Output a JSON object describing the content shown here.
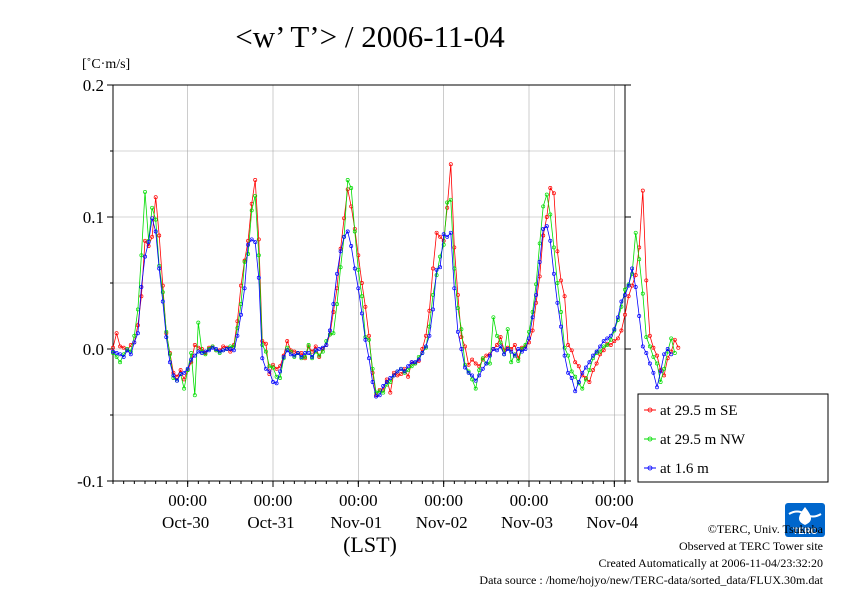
{
  "chart_data": {
    "type": "line",
    "title": "<w’ T’> / 2006-11-04",
    "ylabel": "[˚C·m/s]",
    "xlabel": "(LST)",
    "ylim": [
      -0.1,
      0.2
    ],
    "yticks": [
      "-0.1",
      "0.0",
      "0.1",
      "0.2"
    ],
    "yticks_values": [
      -0.1,
      0.0,
      0.1,
      0.2
    ],
    "xlim": [
      0,
      144
    ],
    "xticks": [
      {
        "x": 21,
        "time": "00:00",
        "date": "Oct-30"
      },
      {
        "x": 45,
        "time": "00:00",
        "date": "Oct-31"
      },
      {
        "x": 69,
        "time": "00:00",
        "date": "Nov-01"
      },
      {
        "x": 93,
        "time": "00:00",
        "date": "Nov-02"
      },
      {
        "x": 117,
        "time": "00:00",
        "date": "Nov-03"
      },
      {
        "x": 141,
        "time": "00:00",
        "date": "Nov-04"
      }
    ],
    "grid": true,
    "legend_position": "bottom-right, outside plot",
    "series": [
      {
        "name": "at 29.5 m SE",
        "color": "#ff0000",
        "values": [
          0.001,
          0.012,
          0.002,
          0.001,
          -0.001,
          0.003,
          0.005,
          0.018,
          0.04,
          0.082,
          0.078,
          0.085,
          0.115,
          0.086,
          0.048,
          0.012,
          -0.003,
          -0.018,
          -0.021,
          -0.016,
          -0.023,
          -0.016,
          -0.01,
          0.003,
          0.001,
          0.0,
          -0.003,
          0.001,
          0.002,
          -0.001,
          -0.001,
          0.002,
          0.001,
          -0.002,
          0.003,
          0.021,
          0.048,
          0.067,
          0.082,
          0.11,
          0.128,
          0.083,
          0.006,
          0.004,
          -0.019,
          -0.012,
          -0.015,
          -0.013,
          -0.005,
          0.006,
          -0.001,
          -0.002,
          -0.003,
          -0.003,
          -0.007,
          0.002,
          -0.002,
          0.002,
          -0.006,
          0.0,
          0.003,
          0.011,
          0.028,
          0.046,
          0.076,
          0.099,
          0.121,
          0.108,
          0.091,
          0.071,
          0.05,
          0.032,
          0.01,
          -0.018,
          -0.035,
          -0.031,
          -0.031,
          -0.023,
          -0.033,
          -0.018,
          -0.02,
          -0.019,
          -0.015,
          -0.021,
          -0.01,
          -0.011,
          -0.009,
          0.0,
          0.01,
          0.029,
          0.061,
          0.088,
          0.085,
          0.082,
          0.107,
          0.14,
          0.077,
          0.041,
          0.009,
          0.002,
          -0.012,
          -0.008,
          -0.011,
          -0.013,
          -0.008,
          -0.005,
          -0.004,
          0.0,
          0.003,
          0.009,
          -0.001,
          0.001,
          0.0,
          0.003,
          -0.007,
          0.001,
          0.002,
          0.005,
          0.014,
          0.035,
          0.055,
          0.086,
          0.1,
          0.122,
          0.118,
          0.074,
          0.052,
          0.04,
          0.003,
          -0.001,
          -0.01,
          -0.013,
          -0.02,
          -0.022,
          -0.025,
          -0.016,
          -0.011,
          -0.004,
          -0.001,
          0.004,
          0.003,
          0.006,
          0.008,
          0.014,
          0.026,
          0.04,
          0.048,
          0.056,
          0.077,
          0.12,
          0.052,
          0.01,
          0.001,
          -0.005,
          -0.016,
          -0.02,
          -0.007,
          -0.002,
          0.007,
          0.001
        ]
      },
      {
        "name": "at 29.5 m NW",
        "color": "#00dd00",
        "values": [
          -0.003,
          -0.006,
          -0.01,
          -0.004,
          0.0,
          -0.002,
          0.01,
          0.03,
          0.071,
          0.119,
          0.082,
          0.107,
          0.098,
          0.063,
          0.043,
          0.013,
          -0.004,
          -0.022,
          -0.024,
          -0.019,
          -0.03,
          -0.016,
          -0.003,
          -0.035,
          0.02,
          -0.002,
          -0.004,
          0.0,
          0.002,
          -0.001,
          -0.003,
          -0.001,
          0.0,
          0.002,
          0.002,
          0.016,
          0.034,
          0.066,
          0.072,
          0.105,
          0.116,
          0.071,
          0.003,
          -0.002,
          -0.013,
          -0.014,
          -0.021,
          -0.022,
          -0.007,
          0.001,
          -0.002,
          -0.006,
          -0.003,
          -0.007,
          -0.006,
          0.003,
          -0.007,
          -0.002,
          -0.005,
          -0.002,
          0.006,
          0.011,
          0.012,
          0.034,
          0.062,
          0.085,
          0.128,
          0.122,
          0.089,
          0.06,
          0.04,
          0.009,
          0.007,
          -0.015,
          -0.033,
          -0.032,
          -0.033,
          -0.027,
          -0.025,
          -0.02,
          -0.017,
          -0.015,
          -0.018,
          -0.016,
          -0.013,
          -0.011,
          -0.006,
          -0.003,
          0.001,
          0.017,
          0.041,
          0.056,
          0.07,
          0.079,
          0.111,
          0.113,
          0.061,
          0.031,
          0.015,
          -0.012,
          -0.017,
          -0.023,
          -0.03,
          -0.016,
          -0.007,
          -0.011,
          -0.011,
          0.024,
          0.01,
          0.005,
          -0.004,
          0.015,
          -0.01,
          -0.004,
          -0.009,
          0.0,
          0.003,
          0.013,
          0.028,
          0.049,
          0.08,
          0.108,
          0.117,
          0.102,
          0.077,
          0.05,
          0.028,
          0.001,
          -0.005,
          -0.017,
          -0.021,
          -0.026,
          -0.03,
          -0.023,
          -0.016,
          -0.007,
          -0.003,
          -0.002,
          0.002,
          0.003,
          0.007,
          0.014,
          0.022,
          0.032,
          0.045,
          0.049,
          0.057,
          0.088,
          0.068,
          0.042,
          0.009,
          0.002,
          -0.006,
          -0.011,
          -0.025,
          -0.015,
          -0.002,
          0.008,
          -0.003
        ]
      },
      {
        "name": "at 1.6 m",
        "color": "#0000ff",
        "values": [
          -0.002,
          -0.003,
          -0.004,
          -0.006,
          -0.001,
          -0.004,
          0.005,
          0.012,
          0.047,
          0.07,
          0.081,
          0.099,
          0.089,
          0.061,
          0.036,
          0.009,
          -0.01,
          -0.02,
          -0.024,
          -0.019,
          -0.018,
          -0.015,
          -0.008,
          -0.005,
          -0.002,
          -0.003,
          -0.002,
          -0.001,
          0.001,
          0.0,
          -0.002,
          -0.001,
          0.0,
          0.0,
          -0.001,
          0.01,
          0.026,
          0.046,
          0.079,
          0.083,
          0.081,
          0.054,
          -0.007,
          -0.015,
          -0.017,
          -0.025,
          -0.026,
          -0.017,
          -0.006,
          -0.001,
          -0.004,
          -0.005,
          -0.003,
          -0.006,
          -0.003,
          -0.003,
          -0.006,
          -0.001,
          0.0,
          0.001,
          0.003,
          0.014,
          0.034,
          0.057,
          0.074,
          0.085,
          0.089,
          0.078,
          0.061,
          0.046,
          0.027,
          0.007,
          -0.007,
          -0.025,
          -0.036,
          -0.035,
          -0.028,
          -0.025,
          -0.022,
          -0.02,
          -0.017,
          -0.015,
          -0.017,
          -0.013,
          -0.01,
          -0.01,
          -0.008,
          -0.003,
          0.002,
          0.01,
          0.03,
          0.06,
          0.062,
          0.087,
          0.085,
          0.088,
          0.046,
          0.013,
          0.0,
          -0.014,
          -0.018,
          -0.02,
          -0.024,
          -0.02,
          -0.015,
          -0.011,
          -0.005,
          0.0,
          -0.001,
          0.002,
          -0.004,
          0.0,
          -0.002,
          -0.005,
          0.0,
          -0.002,
          0.0,
          0.008,
          0.024,
          0.041,
          0.066,
          0.091,
          0.093,
          0.082,
          0.057,
          0.035,
          0.017,
          -0.005,
          -0.018,
          -0.022,
          -0.032,
          -0.025,
          -0.018,
          -0.014,
          -0.01,
          -0.005,
          -0.002,
          0.002,
          0.006,
          0.008,
          0.01,
          0.015,
          0.024,
          0.036,
          0.041,
          0.048,
          0.061,
          0.047,
          0.025,
          0.002,
          -0.003,
          -0.011,
          -0.018,
          -0.029,
          -0.017,
          -0.004,
          0.0,
          -0.004
        ]
      }
    ]
  },
  "credits": {
    "copyright": "©TERC, Univ. Tsukuba",
    "observed": "Observed at TERC Tower site",
    "created": "Created Automatically at 2006-11-04/23:32:20",
    "source": "Data source : /home/hojyo/new/TERC-data/sorted_data/FLUX.30m.dat"
  },
  "logo": {
    "text": "TERC",
    "color": "#0066cc"
  }
}
